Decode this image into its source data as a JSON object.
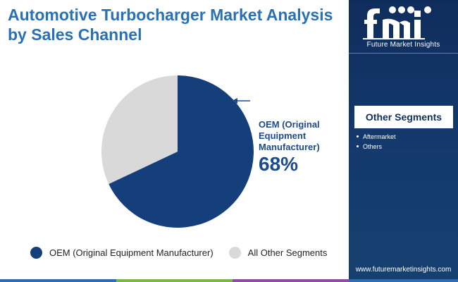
{
  "title": "Automotive Turbocharger Market Analysis by Sales Channel",
  "colors": {
    "title": "#2a70b4",
    "oem": "#153f7b",
    "other": "#d9d9d9",
    "sidebar": "#0f2d5c",
    "callout": "#1c4b8a"
  },
  "chart_data": {
    "type": "pie",
    "title": "Automotive Turbocharger Market Analysis by Sales Channel",
    "slices": [
      {
        "label": "OEM (Original Equipment Manufacturer)",
        "value": 68,
        "color": "#153f7b"
      },
      {
        "label": "All Other Segments",
        "value": 32,
        "color": "#d9d9d9"
      }
    ],
    "legend_position": "bottom",
    "callout": {
      "label": "OEM (Original Equipment Manufacturer)",
      "value": "68%"
    }
  },
  "legend": [
    {
      "label": "OEM (Original Equipment Manufacturer)",
      "color": "#153f7b"
    },
    {
      "label": "All Other Segments",
      "color": "#d9d9d9"
    }
  ],
  "sidebar": {
    "logo_text": "Future Market Insights",
    "segments_title": "Other Segments",
    "segments": [
      "Aftermarket",
      "Others"
    ],
    "website": "www.futuremarketinsights.com"
  },
  "bottom_strip": [
    "#2e6db4",
    "#7ab648",
    "#e8a33a",
    "#8f4fa0",
    "#2e6db4"
  ]
}
